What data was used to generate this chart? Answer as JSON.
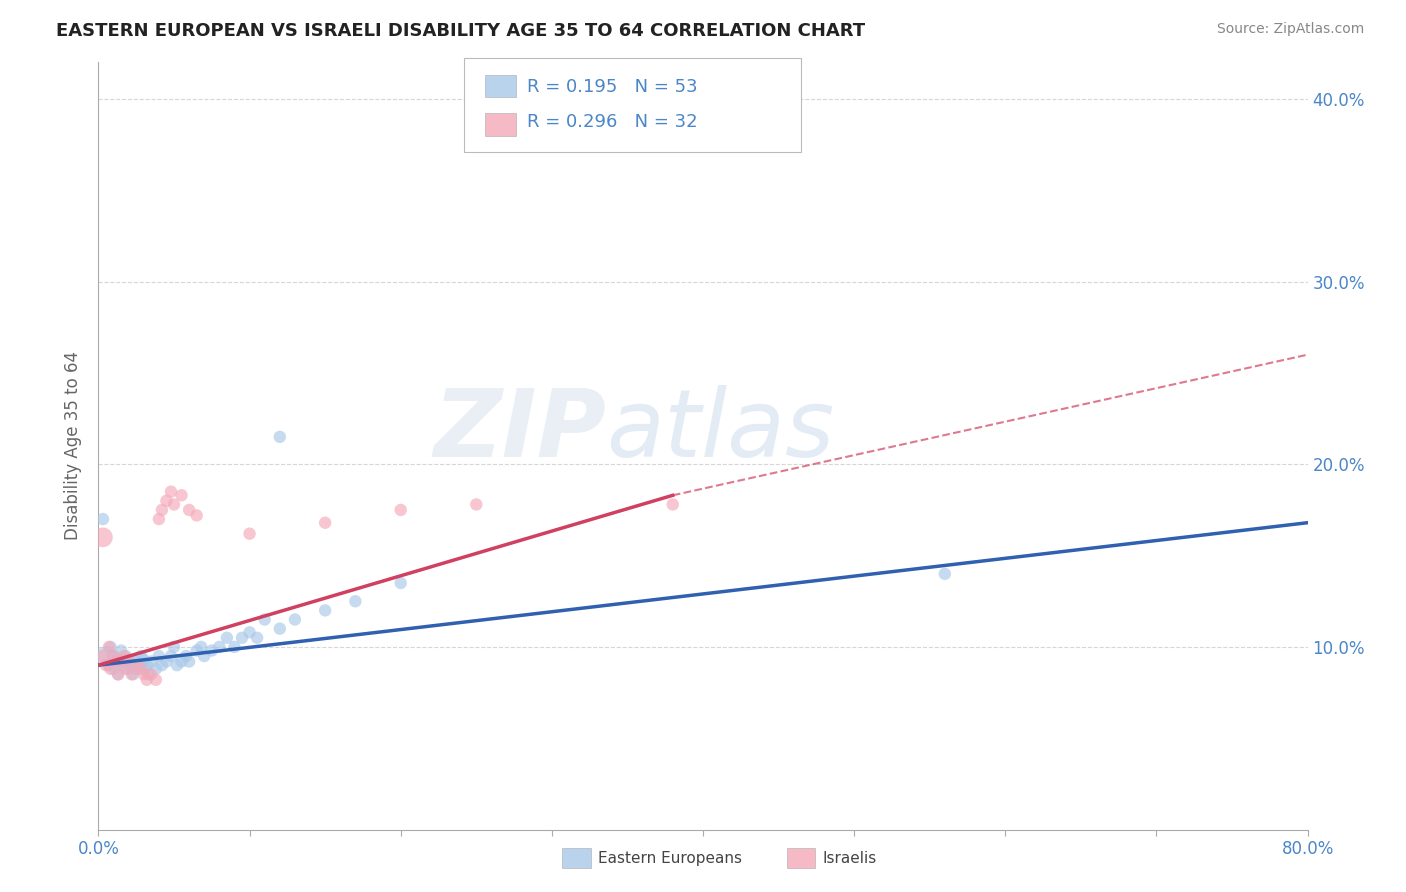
{
  "title": "EASTERN EUROPEAN VS ISRAELI DISABILITY AGE 35 TO 64 CORRELATION CHART",
  "source": "Source: ZipAtlas.com",
  "ylabel": "Disability Age 35 to 64",
  "xlim": [
    0,
    0.8
  ],
  "ylim": [
    0,
    0.42
  ],
  "xticks": [
    0.0,
    0.1,
    0.2,
    0.3,
    0.4,
    0.5,
    0.6,
    0.7,
    0.8
  ],
  "yticks": [
    0.0,
    0.1,
    0.2,
    0.3,
    0.4
  ],
  "legend_r1": "R = 0.195",
  "legend_n1": "N = 53",
  "legend_r2": "R = 0.296",
  "legend_n2": "N = 32",
  "blue_color": "#a8c8e8",
  "pink_color": "#f4a8b8",
  "blue_line_color": "#3060b0",
  "pink_line_color": "#d04060",
  "blue_points": [
    [
      0.005,
      0.095
    ],
    [
      0.007,
      0.09
    ],
    [
      0.008,
      0.1
    ],
    [
      0.01,
      0.088
    ],
    [
      0.01,
      0.095
    ],
    [
      0.012,
      0.092
    ],
    [
      0.013,
      0.085
    ],
    [
      0.015,
      0.092
    ],
    [
      0.015,
      0.098
    ],
    [
      0.017,
      0.09
    ],
    [
      0.018,
      0.095
    ],
    [
      0.02,
      0.088
    ],
    [
      0.02,
      0.093
    ],
    [
      0.022,
      0.09
    ],
    [
      0.023,
      0.085
    ],
    [
      0.025,
      0.092
    ],
    [
      0.025,
      0.088
    ],
    [
      0.027,
      0.09
    ],
    [
      0.028,
      0.095
    ],
    [
      0.03,
      0.088
    ],
    [
      0.03,
      0.093
    ],
    [
      0.032,
      0.09
    ],
    [
      0.033,
      0.085
    ],
    [
      0.035,
      0.092
    ],
    [
      0.038,
      0.088
    ],
    [
      0.04,
      0.095
    ],
    [
      0.042,
      0.09
    ],
    [
      0.045,
      0.092
    ],
    [
      0.048,
      0.095
    ],
    [
      0.05,
      0.1
    ],
    [
      0.052,
      0.09
    ],
    [
      0.055,
      0.092
    ],
    [
      0.058,
      0.095
    ],
    [
      0.06,
      0.092
    ],
    [
      0.065,
      0.098
    ],
    [
      0.068,
      0.1
    ],
    [
      0.07,
      0.095
    ],
    [
      0.075,
      0.098
    ],
    [
      0.08,
      0.1
    ],
    [
      0.085,
      0.105
    ],
    [
      0.09,
      0.1
    ],
    [
      0.095,
      0.105
    ],
    [
      0.1,
      0.108
    ],
    [
      0.105,
      0.105
    ],
    [
      0.11,
      0.115
    ],
    [
      0.12,
      0.11
    ],
    [
      0.13,
      0.115
    ],
    [
      0.15,
      0.12
    ],
    [
      0.17,
      0.125
    ],
    [
      0.2,
      0.135
    ],
    [
      0.003,
      0.17
    ],
    [
      0.12,
      0.215
    ],
    [
      0.56,
      0.14
    ]
  ],
  "blue_point_sizes": [
    200,
    80,
    80,
    80,
    80,
    80,
    80,
    80,
    80,
    80,
    80,
    80,
    80,
    80,
    80,
    80,
    80,
    80,
    80,
    80,
    80,
    80,
    80,
    80,
    80,
    80,
    80,
    80,
    80,
    80,
    80,
    80,
    80,
    80,
    80,
    80,
    80,
    80,
    80,
    80,
    80,
    80,
    80,
    80,
    80,
    80,
    80,
    80,
    80,
    80,
    80,
    80,
    80
  ],
  "pink_points": [
    [
      0.003,
      0.095
    ],
    [
      0.005,
      0.09
    ],
    [
      0.007,
      0.1
    ],
    [
      0.008,
      0.088
    ],
    [
      0.01,
      0.095
    ],
    [
      0.012,
      0.092
    ],
    [
      0.013,
      0.085
    ],
    [
      0.015,
      0.092
    ],
    [
      0.017,
      0.095
    ],
    [
      0.018,
      0.088
    ],
    [
      0.02,
      0.093
    ],
    [
      0.022,
      0.085
    ],
    [
      0.025,
      0.09
    ],
    [
      0.028,
      0.088
    ],
    [
      0.03,
      0.085
    ],
    [
      0.032,
      0.082
    ],
    [
      0.035,
      0.085
    ],
    [
      0.038,
      0.082
    ],
    [
      0.04,
      0.17
    ],
    [
      0.042,
      0.175
    ],
    [
      0.045,
      0.18
    ],
    [
      0.048,
      0.185
    ],
    [
      0.05,
      0.178
    ],
    [
      0.055,
      0.183
    ],
    [
      0.06,
      0.175
    ],
    [
      0.065,
      0.172
    ],
    [
      0.003,
      0.16
    ],
    [
      0.2,
      0.175
    ],
    [
      0.25,
      0.178
    ],
    [
      0.38,
      0.178
    ],
    [
      0.1,
      0.162
    ],
    [
      0.15,
      0.168
    ]
  ],
  "pink_point_sizes": [
    80,
    80,
    80,
    80,
    80,
    80,
    80,
    80,
    80,
    80,
    80,
    80,
    80,
    80,
    80,
    80,
    80,
    80,
    80,
    80,
    80,
    80,
    80,
    80,
    80,
    80,
    200,
    80,
    80,
    80,
    80,
    80
  ],
  "blue_trendline": [
    0.0,
    0.09,
    0.8,
    0.168
  ],
  "pink_trendline_solid": [
    0.0,
    0.09,
    0.38,
    0.183
  ],
  "pink_trendline_dashed": [
    0.38,
    0.183,
    0.8,
    0.26
  ],
  "blue_trendline_dashed": [
    0.56,
    0.152,
    0.8,
    0.168
  ],
  "watermark_left": "ZIP",
  "watermark_right": "atlas",
  "background_color": "#ffffff",
  "grid_color": "#cccccc",
  "tick_color": "#4a86c8",
  "ylabel_color": "#666666"
}
